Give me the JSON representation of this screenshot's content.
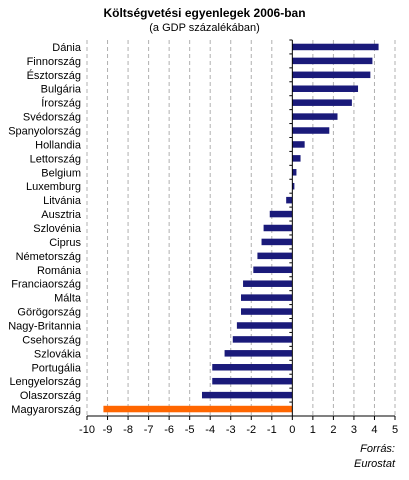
{
  "chart_data": {
    "type": "bar",
    "orientation": "horizontal",
    "title": "Költségvetési egyenlegek 2006-ban",
    "subtitle": "(a GDP százalékában)",
    "source_label": "Forrás:",
    "source_value": "Eurostat",
    "categories": [
      "Dánia",
      "Finnország",
      "Észtország",
      "Bulgária",
      "Írország",
      "Svédország",
      "Spanyolország",
      "Hollandia",
      "Lettország",
      "Belgium",
      "Luxemburg",
      "Litvánia",
      "Ausztria",
      "Szlovénia",
      "Ciprus",
      "Németország",
      "Románia",
      "Franciaország",
      "Málta",
      "Görögország",
      "Nagy-Britannia",
      "Csehország",
      "Szlovákia",
      "Portugália",
      "Lengyelország",
      "Olaszország",
      "Magyarország"
    ],
    "values": [
      4.2,
      3.9,
      3.8,
      3.2,
      2.9,
      2.2,
      1.8,
      0.6,
      0.4,
      0.2,
      0.1,
      -0.3,
      -1.1,
      -1.4,
      -1.5,
      -1.7,
      -1.9,
      -2.4,
      -2.5,
      -2.5,
      -2.7,
      -2.9,
      -3.3,
      -3.9,
      -3.9,
      -4.4,
      -9.2
    ],
    "highlight_category": "Magyarország",
    "xlim": [
      -10,
      5
    ],
    "xticks": [
      "-10",
      "-9",
      "-8",
      "-7",
      "-6",
      "-5",
      "-4",
      "-3",
      "-2",
      "-1",
      "0",
      "1",
      "2",
      "3",
      "4",
      "5"
    ],
    "grid": "vertical dashed",
    "colors": {
      "bar": "#1a1a7a",
      "highlight": "#ff6600",
      "grid": "#b0b0b0"
    }
  }
}
